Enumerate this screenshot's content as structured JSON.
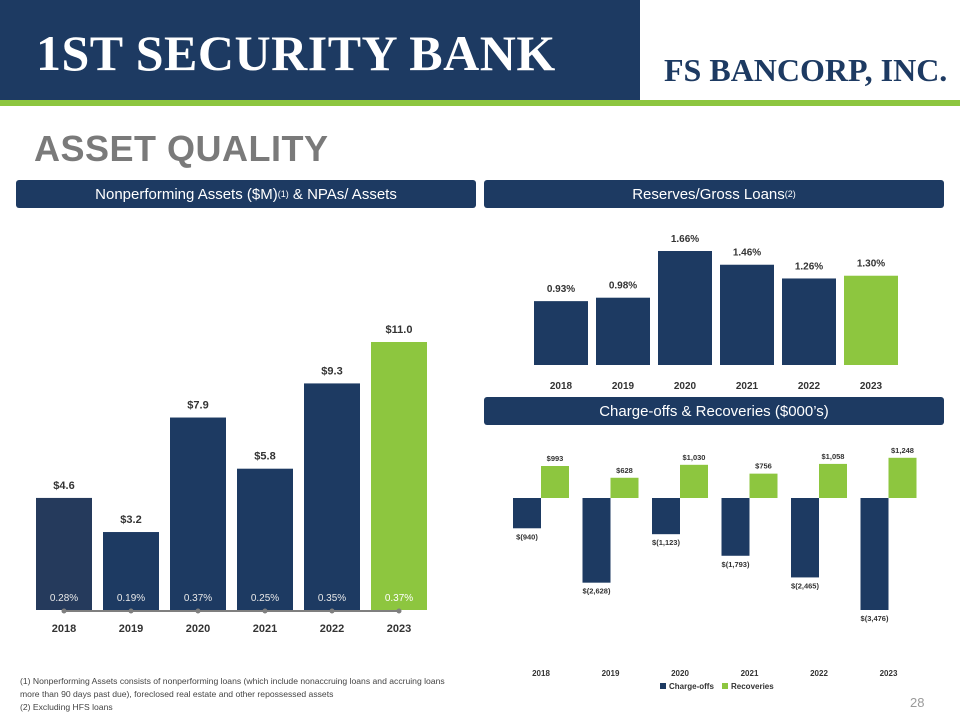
{
  "header": {
    "left_logo": "1ST SECURITY BANK",
    "right_logo": "FS BANCORP, INC."
  },
  "page_title": "ASSET QUALITY",
  "sections": {
    "npa": {
      "title": "Nonperforming Assets ($M)",
      "title_sup": "(1)",
      "title_suffix": " & NPAs/ Assets"
    },
    "reserves": {
      "title": "Reserves/Gross Loans",
      "title_sup": "(2)"
    },
    "chargeoffs": {
      "title": "Charge-offs & Recoveries ($000’s)"
    }
  },
  "colors": {
    "navy": "#1d3a62",
    "green": "#8dc63f",
    "grey_line": "#7f7f7f",
    "title_grey": "#7a7a7a"
  },
  "chart_data": [
    {
      "id": "npa",
      "type": "bar",
      "categories": [
        "2018",
        "2019",
        "2020",
        "2021",
        "2022",
        "2023"
      ],
      "values": [
        4.6,
        3.2,
        7.9,
        5.8,
        9.3,
        11.0
      ],
      "value_labels": [
        "$4.6",
        "$3.2",
        "$7.9",
        "$5.8",
        "$9.3",
        "$11.0"
      ],
      "ratio_values": [
        0.28,
        0.19,
        0.37,
        0.25,
        0.35,
        0.37
      ],
      "ratio_labels": [
        "0.28%",
        "0.19%",
        "0.37%",
        "0.25%",
        "0.35%",
        "0.37%"
      ],
      "highlight_index": 5,
      "ylim": [
        0,
        11.0
      ]
    },
    {
      "id": "reserves",
      "type": "bar",
      "categories": [
        "2018",
        "2019",
        "2020",
        "2021",
        "2022",
        "2023"
      ],
      "values": [
        0.93,
        0.98,
        1.66,
        1.46,
        1.26,
        1.3
      ],
      "value_labels": [
        "0.93%",
        "0.98%",
        "1.66%",
        "1.46%",
        "1.26%",
        "1.30%"
      ],
      "highlight_index": 5,
      "ylim": [
        0,
        1.66
      ]
    },
    {
      "id": "chargeoffs",
      "type": "bar",
      "categories": [
        "2018",
        "2019",
        "2020",
        "2021",
        "2022",
        "2023"
      ],
      "series": [
        {
          "name": "Charge-offs",
          "values": [
            -940,
            -2628,
            -1123,
            -1793,
            -2465,
            -3476
          ],
          "labels": [
            "$(940)",
            "$(2,628)",
            "$(1,123)",
            "$(1,793)",
            "$(2,465)",
            "$(3,476)"
          ]
        },
        {
          "name": "Recoveries",
          "values": [
            993,
            628,
            1030,
            756,
            1058,
            1248
          ],
          "labels": [
            "$993",
            "$628",
            "$1,030",
            "$756",
            "$1,058",
            "$1,248"
          ]
        }
      ],
      "legend": "bottom"
    }
  ],
  "footnotes": [
    "(1) Nonperforming Assets consists of nonperforming loans (which include nonaccruing loans and accruing loans more than 90 days past due), foreclosed real estate and other repossessed assets",
    "(2) Excluding HFS loans"
  ],
  "page_number": "28"
}
